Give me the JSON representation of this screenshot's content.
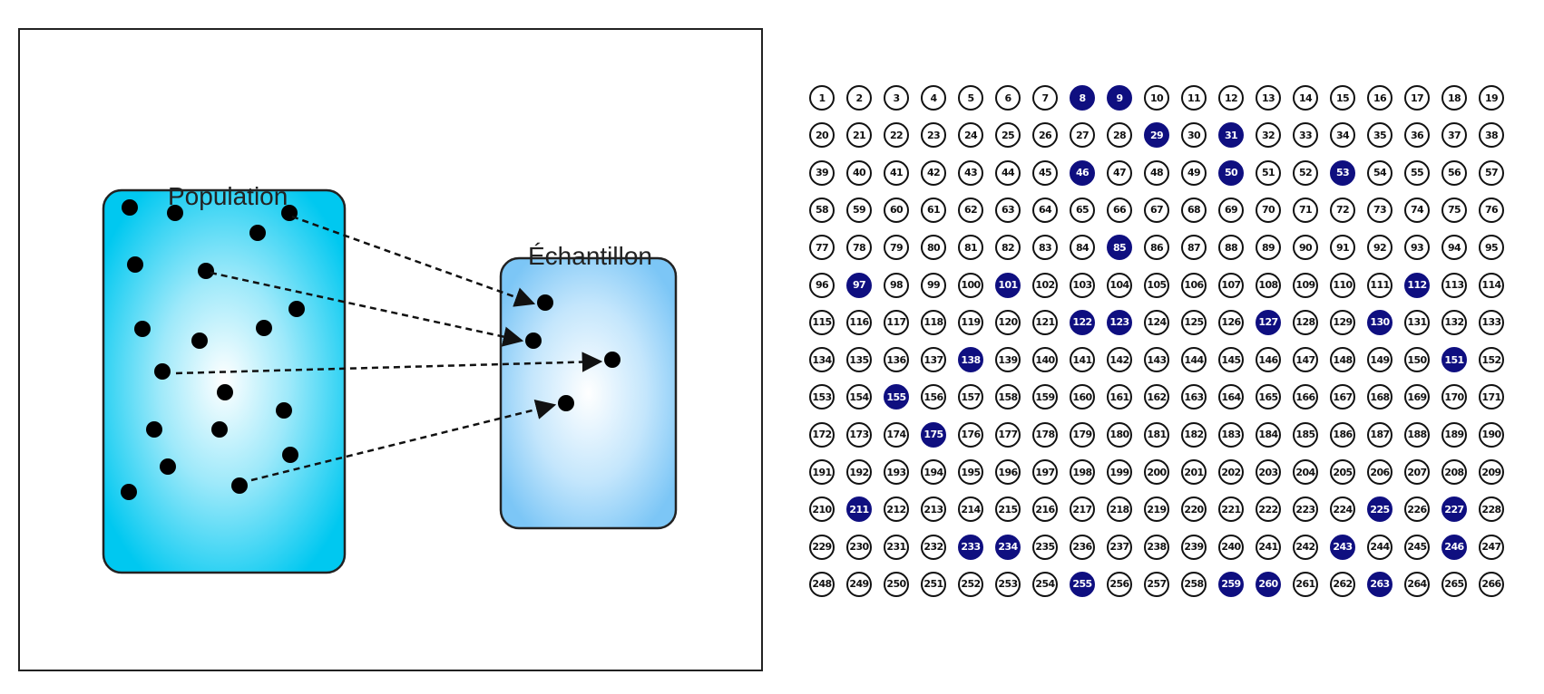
{
  "labels": {
    "population": "Population",
    "sample": "Échantillon"
  },
  "number_grid": {
    "start": 1,
    "end": 266,
    "columns": 19,
    "selected": [
      8,
      9,
      29,
      31,
      46,
      50,
      53,
      85,
      97,
      101,
      112,
      122,
      123,
      127,
      130,
      138,
      151,
      155,
      175,
      211,
      225,
      227,
      233,
      234,
      243,
      246,
      255,
      259,
      260,
      263
    ]
  },
  "colors": {
    "population_fill": "#00ccf2",
    "sample_fill": "#8fd0f8",
    "selected_fill": "#0f0f80",
    "dot": "#000000"
  }
}
